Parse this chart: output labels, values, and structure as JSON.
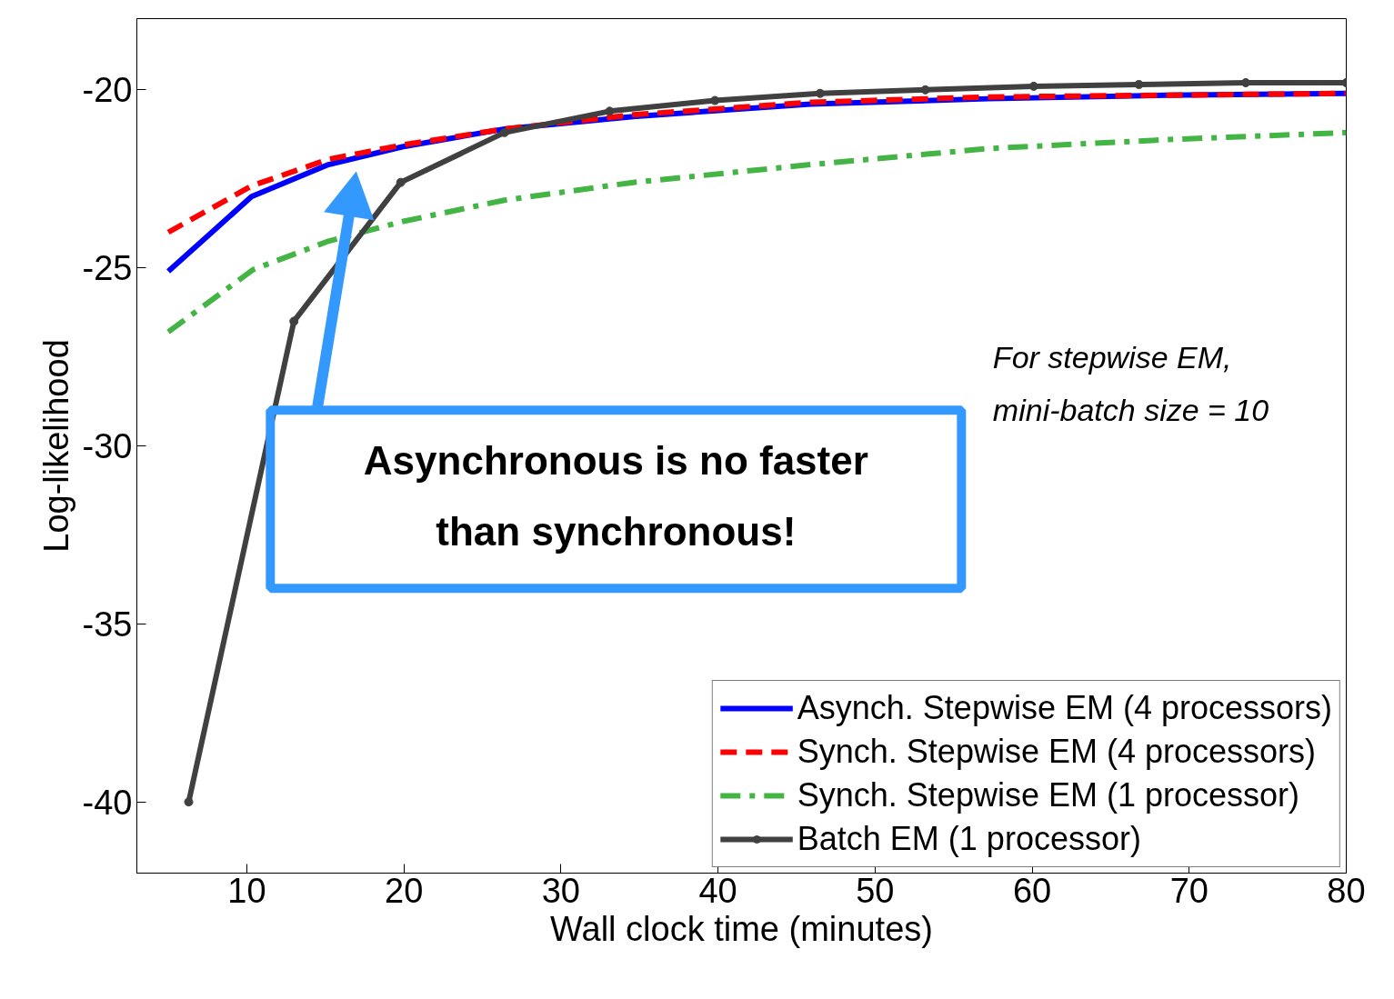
{
  "chart_data": {
    "type": "line",
    "xlabel": "Wall clock time (minutes)",
    "ylabel": "Log-likelihood",
    "xlim": [
      3,
      80
    ],
    "ylim": [
      -42,
      -18
    ],
    "xticks": [
      10,
      20,
      30,
      40,
      50,
      60,
      70,
      80
    ],
    "yticks": [
      -20,
      -25,
      -30,
      -35,
      -40
    ],
    "grid": false,
    "legend": "bottom right",
    "annotations": [
      "Asynchronous is no faster than synchronous!",
      "For stepwise EM, mini-batch size = 10"
    ],
    "series": [
      {
        "name": "Asynch. Stepwise EM (4 processors)",
        "color": "#0000ff",
        "line_style": "solid",
        "marker": "none",
        "x": [
          5.0,
          10.3,
          15.2,
          19.9,
          26.4,
          34.6,
          45.9,
          57.2,
          68.5,
          80
        ],
        "values": [
          -25.1,
          -23.0,
          -22.1,
          -21.6,
          -21.1,
          -20.75,
          -20.4,
          -20.25,
          -20.15,
          -20.1
        ]
      },
      {
        "name": "Synch. Stepwise EM (4 processors)",
        "color": "#ff0000",
        "line_style": "dashed",
        "marker": "none",
        "x": [
          5.0,
          10.3,
          15.2,
          19.9,
          26.4,
          34.6,
          45.9,
          57.2,
          68.5,
          80
        ],
        "values": [
          -24.0,
          -22.7,
          -21.95,
          -21.55,
          -21.1,
          -20.7,
          -20.35,
          -20.2,
          -20.15,
          -20.1
        ]
      },
      {
        "name": "Synch. Stepwise EM (1 processor)",
        "color": "#44b444",
        "line_style": "dashdot",
        "marker": "none",
        "x": [
          5.0,
          10.4,
          15.2,
          19.9,
          26.4,
          34.6,
          45.9,
          57.2,
          68.5,
          80
        ],
        "values": [
          -26.8,
          -25.05,
          -24.25,
          -23.7,
          -23.1,
          -22.6,
          -22.1,
          -21.65,
          -21.4,
          -21.2
        ]
      },
      {
        "name": "Batch EM (1 processor)",
        "color": "#404040",
        "line_style": "solid",
        "marker": "circle",
        "x": [
          6.3,
          13.0,
          19.8,
          26.4,
          33.1,
          39.8,
          46.5,
          53.2,
          60.1,
          66.8,
          73.6,
          80
        ],
        "values": [
          -40.0,
          -26.5,
          -22.6,
          -21.2,
          -20.6,
          -20.3,
          -20.1,
          -20.0,
          -19.9,
          -19.85,
          -19.8,
          -19.8
        ]
      }
    ]
  }
}
